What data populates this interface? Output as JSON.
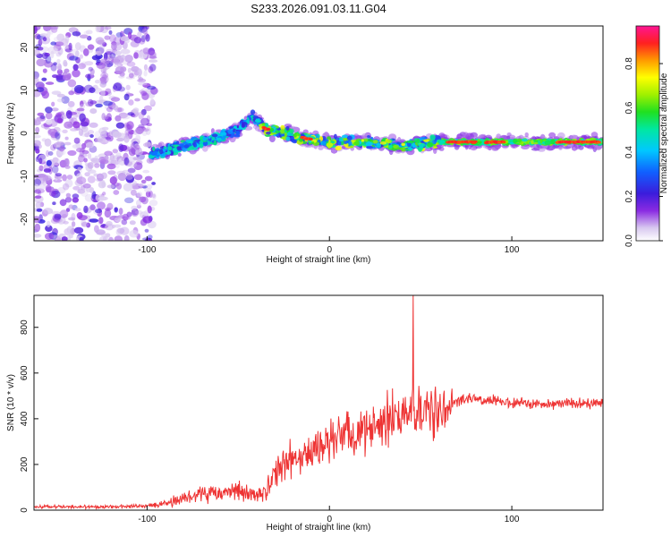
{
  "title": "S233.2026.091.03.11.G04",
  "chart_data": [
    {
      "type": "heatmap",
      "name": "spectrogram",
      "xlabel": "Height of straight line (km)",
      "ylabel": "Frequency (Hz)",
      "xlim": [
        -162,
        150
      ],
      "ylim": [
        -25,
        25
      ],
      "xticks": [
        -100,
        0,
        100
      ],
      "xtick_labels": [
        "-100",
        "0",
        "100"
      ],
      "yticks": [
        20,
        10,
        0,
        -10,
        -20
      ],
      "ytick_labels": [
        "20",
        "10",
        "0",
        "-10",
        "-20"
      ],
      "noise_region_x": [
        -162,
        -96
      ],
      "signal_track": {
        "x": [
          -98,
          -90,
          -80,
          -70,
          -60,
          -50,
          -42,
          -35,
          -25,
          -15,
          0,
          20,
          40,
          60,
          80,
          100,
          120,
          150
        ],
        "y": [
          -5,
          -4,
          -3,
          -2,
          -1,
          1,
          4,
          1,
          0,
          -1,
          -2,
          -2,
          -3,
          -2,
          -2,
          -2,
          -2,
          -2
        ]
      },
      "colorbar": {
        "label": "Normalized spectral amplitude",
        "ticks": [
          0.0,
          0.2,
          0.4,
          0.6,
          0.8
        ],
        "tick_labels": [
          "0.0",
          "0.2",
          "0.4",
          "0.6",
          "0.8"
        ],
        "range": [
          0,
          0.97
        ]
      }
    },
    {
      "type": "line",
      "name": "snr",
      "xlabel": "Height of straight line (km)",
      "ylabel": "SNR (10 * v/v)",
      "xlim": [
        -162,
        150
      ],
      "ylim": [
        0,
        940
      ],
      "xticks": [
        -100,
        0,
        100
      ],
      "xtick_labels": [
        "-100",
        "0",
        "100"
      ],
      "yticks": [
        0,
        200,
        400,
        600,
        800
      ],
      "ytick_labels": [
        "0",
        "200",
        "400",
        "600",
        "800"
      ],
      "color": "#ee3333",
      "envelope": {
        "x": [
          -162,
          -120,
          -100,
          -90,
          -80,
          -70,
          -60,
          -50,
          -40,
          -35,
          -30,
          -20,
          -10,
          0,
          10,
          20,
          30,
          40,
          50,
          60,
          65,
          70,
          80,
          100,
          120,
          150
        ],
        "mean": [
          15,
          15,
          18,
          30,
          50,
          80,
          70,
          90,
          60,
          80,
          160,
          220,
          250,
          290,
          330,
          360,
          400,
          420,
          430,
          440,
          460,
          480,
          490,
          470,
          465,
          470
        ],
        "spread": [
          10,
          10,
          12,
          20,
          40,
          60,
          60,
          70,
          40,
          60,
          110,
          120,
          130,
          150,
          150,
          160,
          160,
          160,
          170,
          160,
          160,
          40,
          35,
          35,
          35,
          35
        ]
      },
      "spike": {
        "x": 46,
        "y": 940
      }
    }
  ]
}
